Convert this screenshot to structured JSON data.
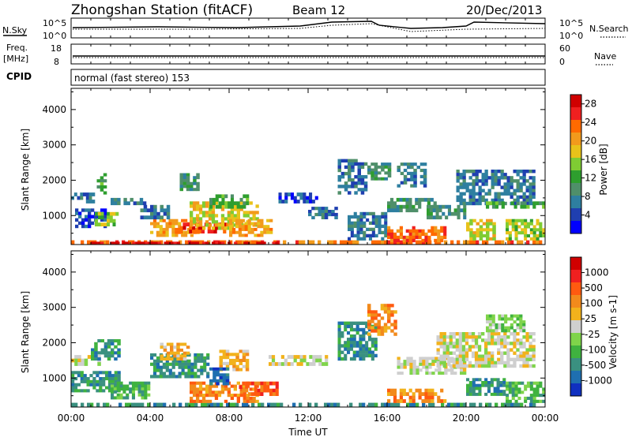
{
  "header": {
    "title": "Zhongshan Station (fitACF)",
    "beam": "Beam 12",
    "date": "20/Dec/2013"
  },
  "sky_panel": {
    "left_label": "N.Sky",
    "right_label": "N.Search",
    "tick_top_left": "10^5",
    "tick_bottom_left": "10^0",
    "tick_top_right": "10^5",
    "tick_bottom_right": "10^0"
  },
  "freq_panel": {
    "label_line1": "Freq.",
    "label_line2": "[MHz]",
    "tick_top_left": "18",
    "tick_bottom_left": "8",
    "tick_top_right": "60",
    "tick_bottom_right": "0",
    "right_label": "Nave"
  },
  "cpid": {
    "label": "CPID",
    "mode_text": "normal (fast stereo) 153"
  },
  "chart_data": [
    {
      "type": "heatmap",
      "parameter": "power",
      "ylabel": "Slant Range [km]",
      "xlabel": "Time UT",
      "x_ticks": [
        "00:00",
        "04:00",
        "08:00",
        "12:00",
        "16:00",
        "20:00",
        "00:00"
      ],
      "x_range_hours": [
        0,
        24
      ],
      "y_ticks": [
        1000,
        2000,
        3000,
        4000
      ],
      "ylim_km": [
        180,
        4600
      ],
      "colorbar": {
        "label": "Power [dB]",
        "ticks": [
          4,
          8,
          12,
          16,
          20,
          24,
          28
        ],
        "range": [
          0,
          30
        ],
        "colors": [
          "#0000ff",
          "#1f3fb0",
          "#2e7fa0",
          "#4f8f6a",
          "#2e9e2e",
          "#7fcc33",
          "#e8c21a",
          "#f29a1c",
          "#ff6a00",
          "#f02020",
          "#d00000"
        ]
      },
      "regions": [
        {
          "t0": 0.0,
          "t1": 24.0,
          "r0": 180,
          "r1": 300,
          "value": 24
        },
        {
          "t0": 1.0,
          "t1": 10.5,
          "r0": 200,
          "r1": 260,
          "value": 28
        },
        {
          "t0": 0.0,
          "t1": 1.2,
          "r0": 1350,
          "r1": 1650,
          "value": 6
        },
        {
          "t0": 0.2,
          "t1": 1.8,
          "r0": 650,
          "r1": 1200,
          "value": 5
        },
        {
          "t0": 1.2,
          "t1": 2.4,
          "r0": 700,
          "r1": 1100,
          "value": 14
        },
        {
          "t0": 1.3,
          "t1": 1.8,
          "r0": 1600,
          "r1": 2200,
          "value": 11
        },
        {
          "t0": 2.0,
          "t1": 3.8,
          "r0": 1300,
          "r1": 1500,
          "value": 8
        },
        {
          "t0": 4.0,
          "t1": 6.5,
          "r0": 400,
          "r1": 900,
          "value": 21
        },
        {
          "t0": 5.5,
          "t1": 8.0,
          "r0": 500,
          "r1": 800,
          "value": 26
        },
        {
          "t0": 6.0,
          "t1": 9.5,
          "r0": 600,
          "r1": 1400,
          "value": 17
        },
        {
          "t0": 7.0,
          "t1": 9.0,
          "r0": 1200,
          "r1": 1600,
          "value": 13
        },
        {
          "t0": 8.0,
          "t1": 10.2,
          "r0": 400,
          "r1": 900,
          "value": 20
        },
        {
          "t0": 5.5,
          "t1": 6.5,
          "r0": 1700,
          "r1": 2200,
          "value": 10
        },
        {
          "t0": 3.5,
          "t1": 5.0,
          "r0": 900,
          "r1": 1300,
          "value": 6
        },
        {
          "t0": 10.5,
          "t1": 12.5,
          "r0": 1350,
          "r1": 1650,
          "value": 5
        },
        {
          "t0": 12.0,
          "t1": 13.5,
          "r0": 900,
          "r1": 1250,
          "value": 6
        },
        {
          "t0": 13.5,
          "t1": 15.0,
          "r0": 1600,
          "r1": 2600,
          "value": 8
        },
        {
          "t0": 14.0,
          "t1": 16.0,
          "r0": 300,
          "r1": 1100,
          "value": 7
        },
        {
          "t0": 15.0,
          "t1": 16.2,
          "r0": 2000,
          "r1": 2500,
          "value": 9
        },
        {
          "t0": 16.0,
          "t1": 18.5,
          "r0": 1100,
          "r1": 1500,
          "value": 10
        },
        {
          "t0": 16.0,
          "t1": 19.0,
          "r0": 250,
          "r1": 700,
          "value": 23
        },
        {
          "t0": 16.5,
          "t1": 18.0,
          "r0": 1800,
          "r1": 2500,
          "value": 7
        },
        {
          "t0": 18.0,
          "t1": 20.0,
          "r0": 900,
          "r1": 1300,
          "value": 9
        },
        {
          "t0": 19.5,
          "t1": 23.5,
          "r0": 1300,
          "r1": 2300,
          "value": 6
        },
        {
          "t0": 20.0,
          "t1": 21.5,
          "r0": 300,
          "r1": 900,
          "value": 18
        },
        {
          "t0": 22.0,
          "t1": 24.0,
          "r0": 300,
          "r1": 900,
          "value": 14
        },
        {
          "t0": 21.0,
          "t1": 24.0,
          "r0": 1200,
          "r1": 1400,
          "value": 12
        }
      ]
    },
    {
      "type": "heatmap",
      "parameter": "velocity",
      "ylabel": "Slant Range [km]",
      "xlabel": "Time UT",
      "x_ticks": [
        "00:00",
        "04:00",
        "08:00",
        "12:00",
        "16:00",
        "20:00",
        "00:00"
      ],
      "x_range_hours": [
        0,
        24
      ],
      "y_ticks": [
        1000,
        2000,
        3000,
        4000
      ],
      "ylim_km": [
        180,
        4600
      ],
      "colorbar": {
        "label": "Velocity [m s-1]",
        "ticks": [
          "1000",
          "500",
          "100",
          "25",
          "-25",
          "-100",
          "-500",
          "-1000"
        ],
        "colors": [
          "#1030c0",
          "#1f6fb0",
          "#3a9080",
          "#3fb23f",
          "#7fd44a",
          "#cfcfcf",
          "#f2b21c",
          "#f28a1c",
          "#ff5a10",
          "#f02020",
          "#d00000"
        ]
      },
      "regions": [
        {
          "t0": 0.0,
          "t1": 24.0,
          "r0": 180,
          "r1": 300,
          "value": 2
        },
        {
          "t0": 0.0,
          "t1": 1.5,
          "r0": 1350,
          "r1": 1650,
          "value": 5
        },
        {
          "t0": 0.0,
          "t1": 2.5,
          "r0": 600,
          "r1": 1200,
          "value": 2
        },
        {
          "t0": 1.0,
          "t1": 2.5,
          "r0": 1500,
          "r1": 2100,
          "value": 2
        },
        {
          "t0": 2.0,
          "t1": 4.0,
          "r0": 400,
          "r1": 900,
          "value": 3
        },
        {
          "t0": 4.0,
          "t1": 7.0,
          "r0": 1000,
          "r1": 1700,
          "value": 2
        },
        {
          "t0": 4.5,
          "t1": 6.0,
          "r0": 1500,
          "r1": 2000,
          "value": 6
        },
        {
          "t0": 6.0,
          "t1": 9.5,
          "r0": 300,
          "r1": 900,
          "value": 7
        },
        {
          "t0": 7.5,
          "t1": 9.0,
          "r0": 1200,
          "r1": 1800,
          "value": 6
        },
        {
          "t0": 8.5,
          "t1": 10.5,
          "r0": 500,
          "r1": 900,
          "value": 8
        },
        {
          "t0": 7.0,
          "t1": 8.0,
          "r0": 800,
          "r1": 1300,
          "value": 1
        },
        {
          "t0": 10.0,
          "t1": 13.0,
          "r0": 1350,
          "r1": 1650,
          "value": 5
        },
        {
          "t0": 13.5,
          "t1": 15.5,
          "r0": 1500,
          "r1": 2600,
          "value": 2
        },
        {
          "t0": 15.0,
          "t1": 16.5,
          "r0": 2200,
          "r1": 3100,
          "value": 7
        },
        {
          "t0": 16.0,
          "t1": 19.0,
          "r0": 300,
          "r1": 700,
          "value": 7
        },
        {
          "t0": 16.5,
          "t1": 20.0,
          "r0": 1100,
          "r1": 1600,
          "value": 5
        },
        {
          "t0": 18.5,
          "t1": 23.5,
          "r0": 1300,
          "r1": 2300,
          "value": 5
        },
        {
          "t0": 20.0,
          "t1": 22.0,
          "r0": 500,
          "r1": 1000,
          "value": 2
        },
        {
          "t0": 22.0,
          "t1": 24.0,
          "r0": 300,
          "r1": 900,
          "value": 3
        },
        {
          "t0": 21.0,
          "t1": 23.0,
          "r0": 2300,
          "r1": 2800,
          "value": 4
        }
      ]
    }
  ]
}
